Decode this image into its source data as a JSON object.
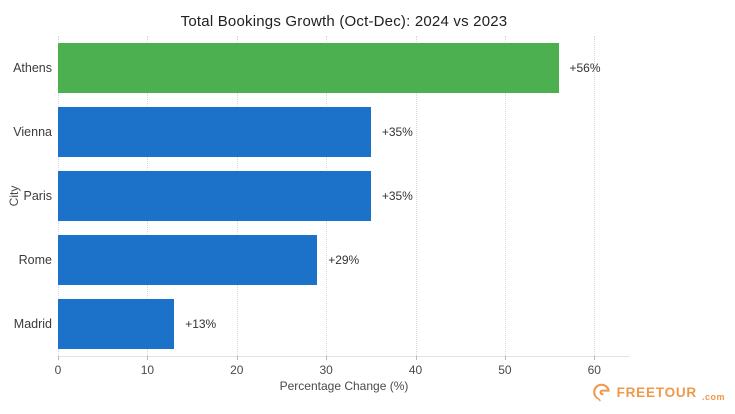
{
  "chart_data": {
    "type": "bar",
    "orientation": "horizontal",
    "title": "Total Bookings Growth (Oct-Dec): 2024 vs 2023",
    "categories": [
      "Athens",
      "Vienna",
      "Paris",
      "Rome",
      "Madrid"
    ],
    "values": [
      56,
      35,
      35,
      29,
      13
    ],
    "value_labels": [
      "+56%",
      "+35%",
      "+35%",
      "+29%",
      "+13%"
    ],
    "bar_colors": [
      "#4CAF50",
      "#1B72C8",
      "#1B72C8",
      "#1B72C8",
      "#1B72C8"
    ],
    "xlabel": "Percentage Change (%)",
    "ylabel": "City",
    "xlim": [
      0,
      64
    ],
    "xticks": [
      0,
      10,
      20,
      30,
      40,
      50,
      60
    ],
    "grid": "vertical-dotted",
    "legend": "none"
  },
  "branding": {
    "name": "FREETOUR",
    "suffix": ".com",
    "color": "#F0984B",
    "icon": "freetour-swirl-icon"
  }
}
